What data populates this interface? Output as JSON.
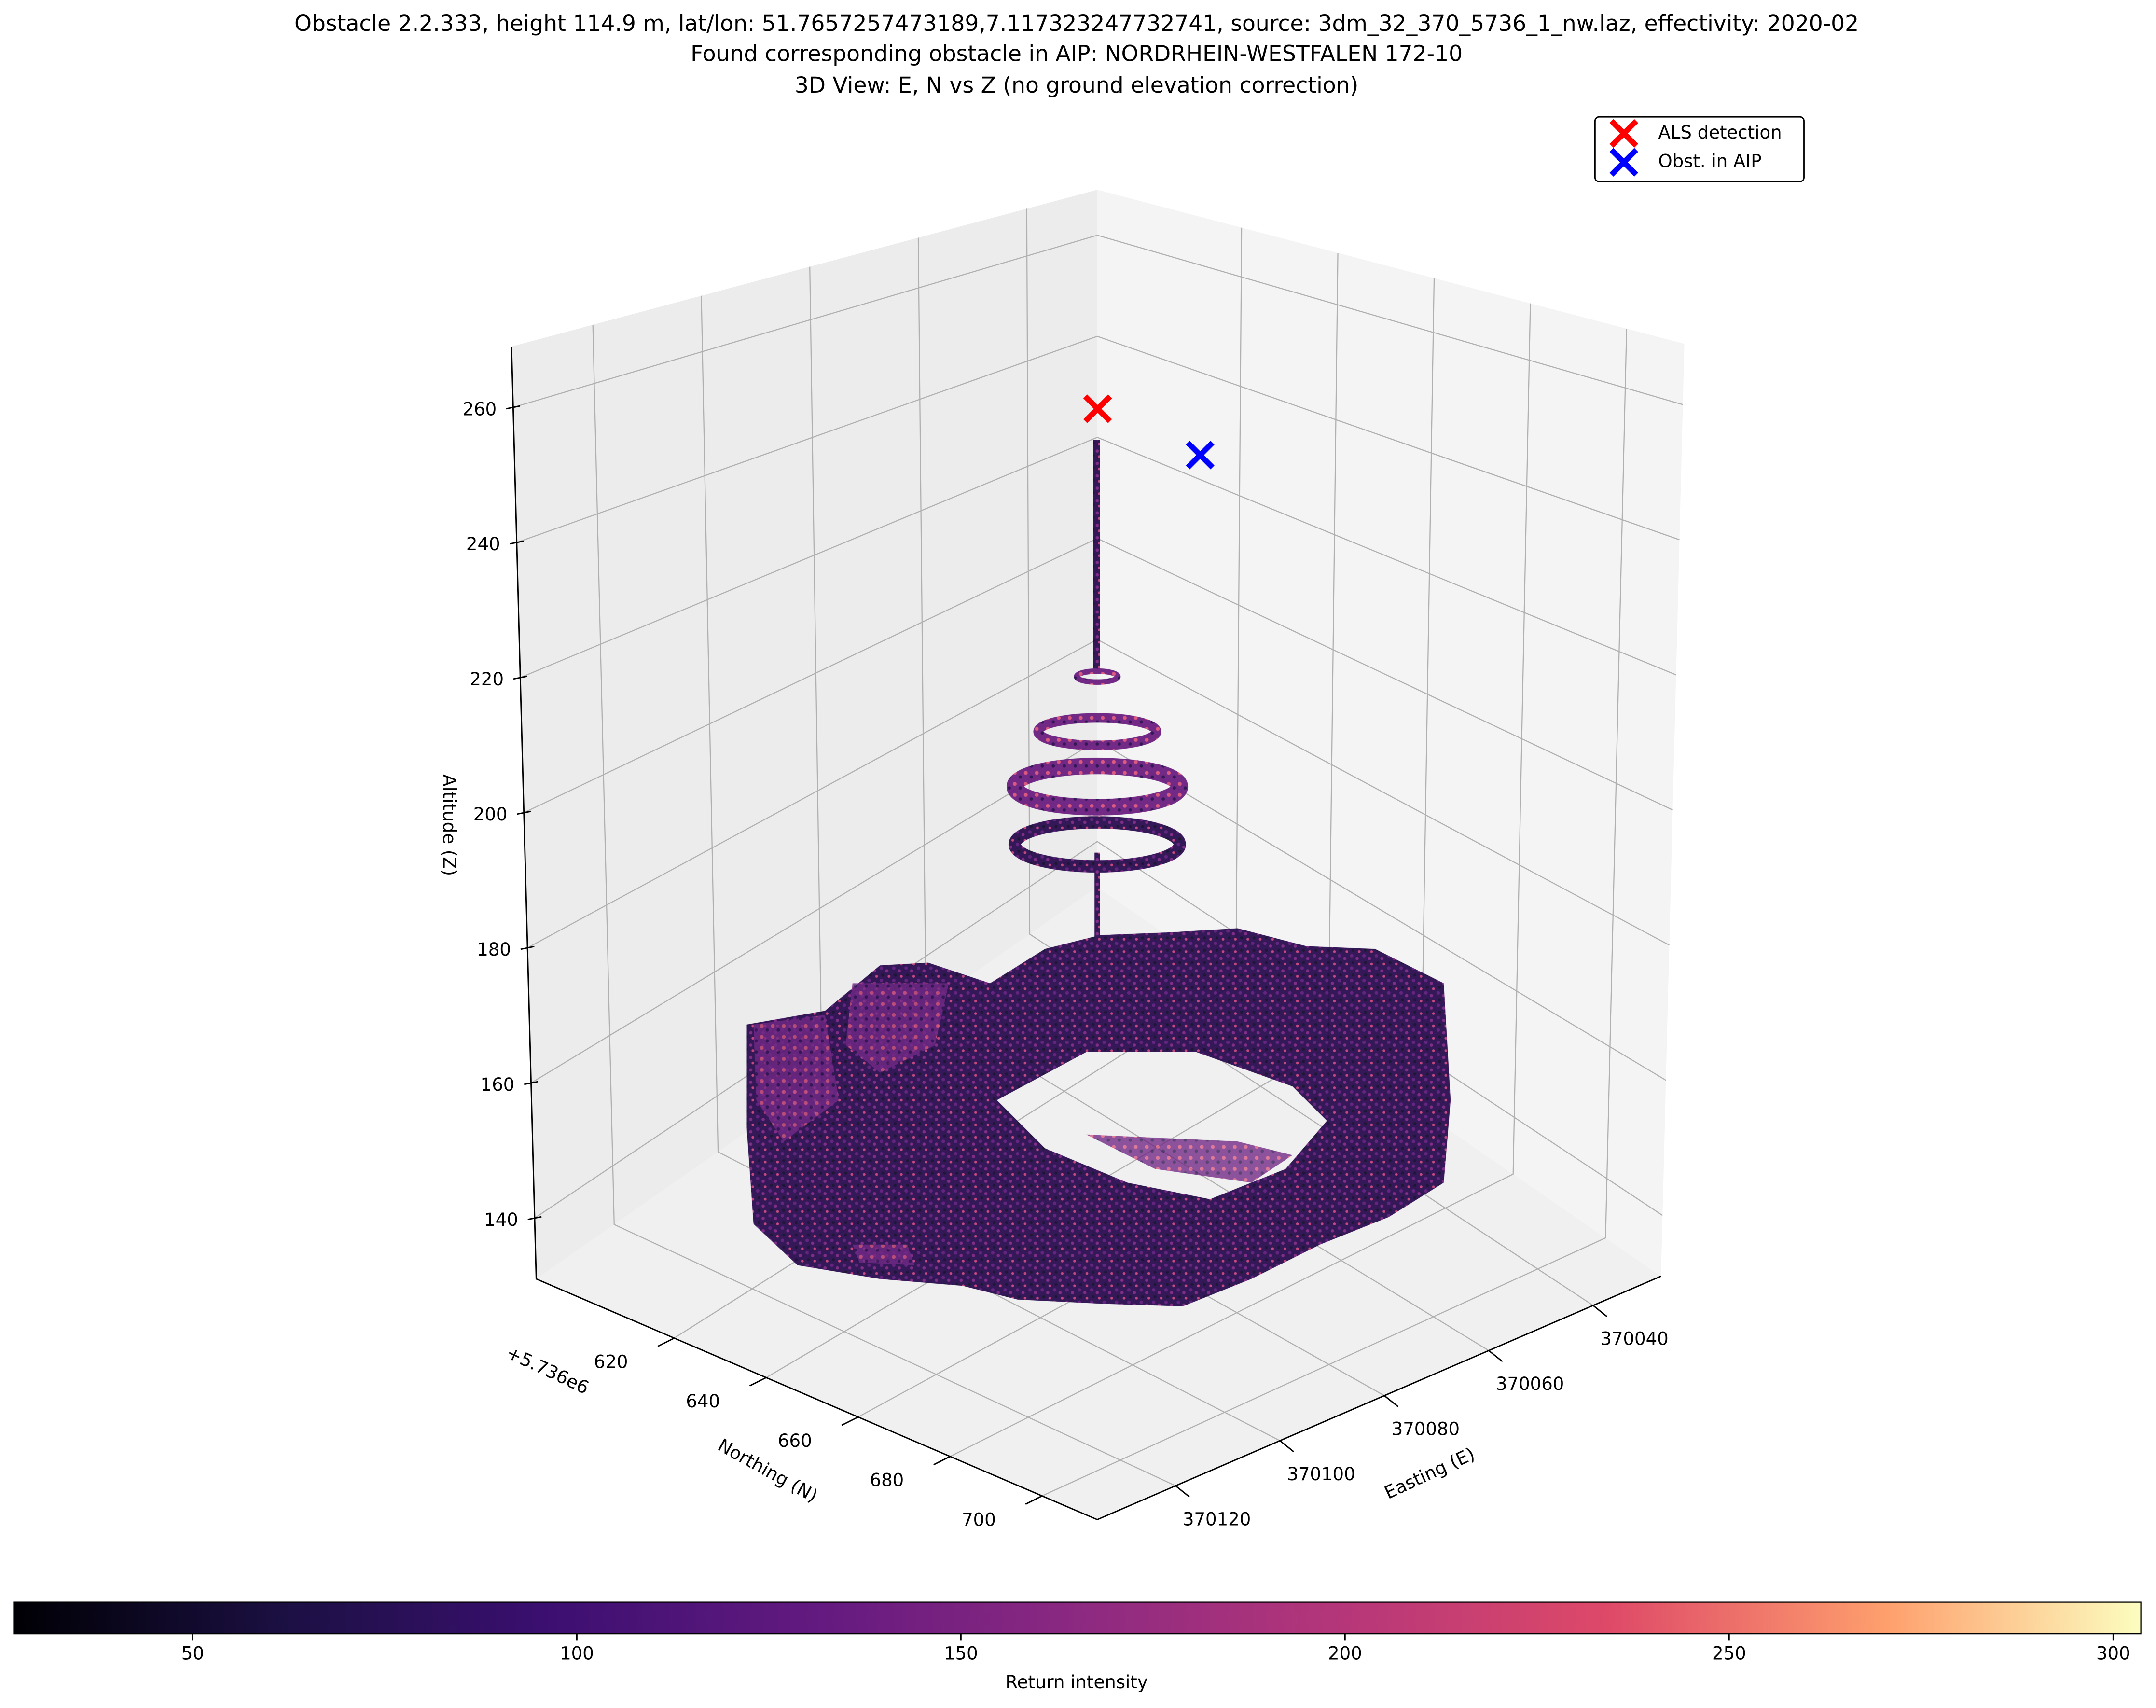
{
  "chart_data": {
    "type": "scatter3d",
    "title": [
      "Obstacle 2.2.333, height 114.9 m, lat/lon: 51.7657257473189,7.117323247732741, source: 3dm_32_370_5736_1_nw.laz, effectivity: 2020-02",
      "Found corresponding obstacle in AIP: NORDRHEIN-WESTFALEN 172-10",
      "3D View: E, N vs Z (no ground elevation correction)"
    ],
    "xlabel": "Easting (E)",
    "ylabel": "Northing (N)",
    "zlabel": "Altitude (Z)",
    "y_offset_label": "+5.736e6",
    "xlim": [
      370135,
      370027
    ],
    "xticks": [
      370040,
      370060,
      370080,
      370100,
      370120
    ],
    "ylim": [
      590,
      712
    ],
    "yticks": [
      620,
      640,
      660,
      680,
      700
    ],
    "zlim": [
      131,
      269
    ],
    "zticks": [
      140,
      160,
      180,
      200,
      220,
      240,
      260
    ],
    "grid": true,
    "legend": "upper right",
    "series": [
      {
        "name": "ALS detection",
        "color": "#ff0000",
        "x": [
          370081
        ],
        "y": [
          651
        ],
        "z": [
          259
        ]
      },
      {
        "name": "Obst. in AIP",
        "color": "#0000ff",
        "x": [
          370062
        ],
        "y": [
          651
        ],
        "z": [
          247
        ]
      }
    ],
    "colorbar": {
      "label": "Return intensity",
      "colormap": "magma",
      "lim": [
        26.7,
        303.6
      ],
      "ticks": [
        50,
        100,
        150,
        200,
        250,
        300
      ]
    }
  }
}
